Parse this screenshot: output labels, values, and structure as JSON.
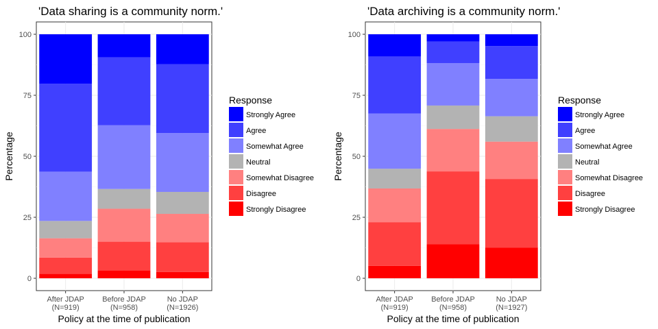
{
  "chart_data": [
    {
      "type": "bar",
      "stacked": true,
      "title": "'Data sharing is a community norm.'",
      "xlabel": "Policy at the time of publication",
      "ylabel": "Percentage",
      "categories": [
        "After JDAP",
        "Before JDAP",
        "No JDAP"
      ],
      "category_sublabels": [
        "(N=919)",
        "(N=958)",
        "(N=1926)"
      ],
      "yticks": [
        "0",
        "25",
        "50",
        "75",
        "100"
      ],
      "ylim": [
        0,
        100
      ],
      "grid": true,
      "legend": {
        "title": "Response",
        "placement": "right"
      },
      "series": [
        {
          "name": "Strongly Disagree",
          "color": "#ff0000",
          "values": [
            1.8,
            3.2,
            2.6
          ]
        },
        {
          "name": "Disagree",
          "color": "#ff4040",
          "values": [
            6.7,
            11.8,
            12.2
          ]
        },
        {
          "name": "Somewhat Disagree",
          "color": "#ff8080",
          "values": [
            7.9,
            13.5,
            11.6
          ]
        },
        {
          "name": "Neutral",
          "color": "#b3b3b3",
          "values": [
            7.1,
            8.1,
            9.0
          ]
        },
        {
          "name": "Somewhat Agree",
          "color": "#8080ff",
          "values": [
            20.2,
            26.1,
            24.1
          ]
        },
        {
          "name": "Agree",
          "color": "#4040ff",
          "values": [
            36.0,
            27.9,
            28.2
          ]
        },
        {
          "name": "Strongly Agree",
          "color": "#0000ff",
          "values": [
            20.3,
            9.4,
            12.3
          ]
        }
      ]
    },
    {
      "type": "bar",
      "stacked": true,
      "title": "'Data archiving is a community norm.'",
      "xlabel": "Policy at the time of publication",
      "ylabel": "Percentage",
      "categories": [
        "After JDAP",
        "Before JDAP",
        "No JDAP"
      ],
      "category_sublabels": [
        "(N=919)",
        "(N=958)",
        "(N=1927)"
      ],
      "yticks": [
        "0",
        "25",
        "50",
        "75",
        "100"
      ],
      "ylim": [
        0,
        100
      ],
      "grid": true,
      "legend": {
        "title": "Response",
        "placement": "right"
      },
      "series": [
        {
          "name": "Strongly Disagree",
          "color": "#ff0000",
          "values": [
            5.1,
            13.9,
            12.6
          ]
        },
        {
          "name": "Disagree",
          "color": "#ff4040",
          "values": [
            17.9,
            29.9,
            28.1
          ]
        },
        {
          "name": "Somewhat Disagree",
          "color": "#ff8080",
          "values": [
            13.8,
            17.4,
            15.3
          ]
        },
        {
          "name": "Neutral",
          "color": "#b3b3b3",
          "values": [
            8.1,
            9.6,
            10.4
          ]
        },
        {
          "name": "Somewhat Agree",
          "color": "#8080ff",
          "values": [
            22.6,
            17.4,
            15.3
          ]
        },
        {
          "name": "Agree",
          "color": "#4040ff",
          "values": [
            23.4,
            8.8,
            13.5
          ]
        },
        {
          "name": "Strongly Agree",
          "color": "#0000ff",
          "values": [
            9.1,
            3.0,
            4.8
          ]
        }
      ]
    }
  ]
}
